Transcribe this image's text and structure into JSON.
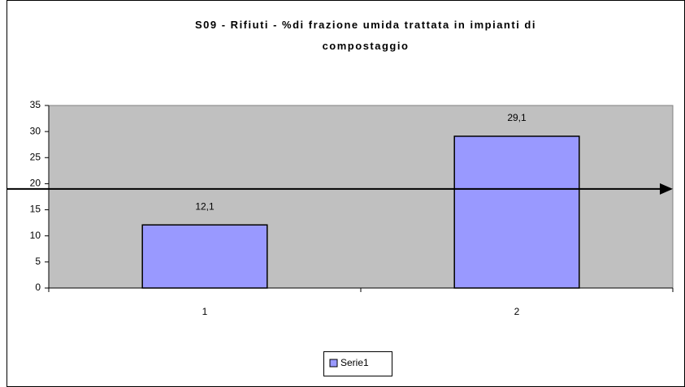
{
  "chart_data": {
    "type": "bar",
    "title": "S09 - Rifiuti - %di frazione umida trattata in impianti di compostaggio",
    "categories": [
      "1",
      "2"
    ],
    "series": [
      {
        "name": "Serie1",
        "color": "#9999ff",
        "values": [
          12.1,
          29.1
        ],
        "value_labels": [
          "12,1",
          "29,1"
        ]
      }
    ],
    "ylim": [
      0,
      35
    ],
    "yticks": [
      0,
      5,
      10,
      15,
      20,
      25,
      30,
      35
    ],
    "grid": false,
    "target_line": 19,
    "legend": "bottom"
  }
}
